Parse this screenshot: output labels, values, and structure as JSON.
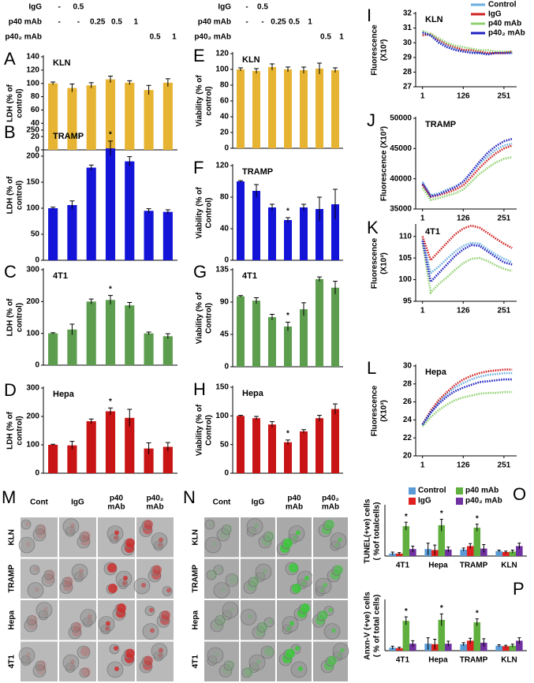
{
  "treatments": {
    "rows": [
      {
        "label": "IgG",
        "doses": [
          "-",
          "0.5",
          null,
          null,
          null,
          null,
          null
        ]
      },
      {
        "label": "p40 mAb",
        "doses": [
          "-",
          "-",
          "0.25",
          "0.5",
          "1",
          null,
          null
        ]
      },
      {
        "label": "p40₂ mAb",
        "doses": [
          null,
          null,
          null,
          null,
          null,
          "0.5",
          "1"
        ]
      }
    ]
  },
  "micrographs": [
    {
      "panel": "M",
      "columns": [
        [
          "Cont"
        ],
        [
          "IgG"
        ],
        [
          "p40",
          "mAb"
        ],
        [
          "p40₂",
          "mAb"
        ]
      ],
      "rows": [
        "KLN",
        "TRAMP",
        "Hepa",
        "4T1"
      ]
    },
    {
      "panel": "N",
      "columns": [
        [
          "Cont"
        ],
        [
          "IgG"
        ],
        [
          "p40",
          "mAb"
        ],
        [
          "p40₂",
          "mAb"
        ]
      ],
      "rows": [
        "KLN",
        "TRAMP",
        "Hepa",
        "4T1"
      ]
    }
  ],
  "chart_data": [
    {
      "type": "bar",
      "panel": "A",
      "title": "KLN",
      "y_label": [
        "LDH (% of",
        "control)"
      ],
      "color": "#e6b432",
      "values": [
        100,
        93,
        97,
        106,
        101,
        90,
        101
      ],
      "errors": [
        2,
        6,
        4,
        5,
        3,
        7,
        6
      ],
      "significance": [
        null,
        null,
        null,
        null,
        null,
        null,
        null
      ],
      "ylim": [
        0,
        140
      ],
      "yticks": [
        0,
        20,
        40,
        60,
        80,
        100,
        120,
        140
      ]
    },
    {
      "type": "bar",
      "panel": "B",
      "title": "TRAMP",
      "y_label": [
        "LDH (% of",
        "control)"
      ],
      "color": "#1414d8",
      "values": [
        100,
        106,
        178,
        215,
        190,
        95,
        93
      ],
      "errors": [
        2,
        8,
        5,
        14,
        9,
        4,
        4
      ],
      "significance": [
        null,
        null,
        null,
        "*",
        null,
        null,
        null
      ],
      "ylim": [
        0,
        250
      ],
      "yticks": [
        0,
        50,
        100,
        150,
        200,
        250
      ]
    },
    {
      "type": "bar",
      "panel": "C",
      "title": "4T1",
      "y_label": [
        "LDH (% of",
        "control)"
      ],
      "color": "#5c9e4e",
      "values": [
        100,
        112,
        200,
        205,
        188,
        100,
        91
      ],
      "errors": [
        2,
        17,
        8,
        14,
        9,
        4,
        8
      ],
      "significance": [
        null,
        null,
        null,
        "*",
        null,
        null,
        null
      ],
      "ylim": [
        0,
        300
      ],
      "yticks": [
        0,
        100,
        200,
        300
      ]
    },
    {
      "type": "bar",
      "panel": "D",
      "title": "Hepa",
      "y_label": [
        "LDH (% of",
        "control)"
      ],
      "color": "#c81414",
      "values": [
        100,
        98,
        183,
        218,
        195,
        87,
        93
      ],
      "errors": [
        2,
        14,
        8,
        12,
        30,
        20,
        15
      ],
      "significance": [
        null,
        null,
        null,
        "*",
        null,
        null,
        null
      ],
      "ylim": [
        0,
        300
      ],
      "yticks": [
        0,
        100,
        200,
        300
      ]
    },
    {
      "type": "bar",
      "panel": "E",
      "title": "KLN",
      "y_label": [
        "Viability (% of",
        "control)"
      ],
      "color": "#e6b432",
      "values": [
        100,
        98,
        103,
        100,
        99,
        101,
        99
      ],
      "errors": [
        2,
        3,
        4,
        3,
        4,
        7,
        3
      ],
      "significance": [
        null,
        null,
        null,
        null,
        null,
        null,
        null
      ],
      "ylim": [
        0,
        120
      ],
      "yticks": [
        0,
        20,
        40,
        60,
        80,
        100,
        120
      ]
    },
    {
      "type": "bar",
      "panel": "F",
      "title": "TRAMP",
      "y_label": [
        "Viability (% of",
        "Control)"
      ],
      "color": "#1414d8",
      "values": [
        100,
        88,
        67,
        51,
        67,
        65,
        71
      ],
      "errors": [
        1,
        8,
        4,
        3,
        4,
        15,
        19
      ],
      "significance": [
        null,
        null,
        null,
        "*",
        null,
        null,
        null
      ],
      "ylim": [
        0,
        120
      ],
      "yticks": [
        0,
        40,
        80,
        120
      ]
    },
    {
      "type": "bar",
      "panel": "G",
      "title": "4T1",
      "y_label": [
        "Viability (% of",
        "Control)"
      ],
      "color": "#5c9e4e",
      "values": [
        98,
        92,
        69,
        56,
        80,
        122,
        110
      ],
      "errors": [
        1,
        4,
        4,
        6,
        9,
        3,
        9
      ],
      "significance": [
        null,
        null,
        null,
        "*",
        null,
        null,
        null
      ],
      "ylim": [
        0,
        135
      ],
      "yticks": [
        0,
        45,
        90,
        135
      ]
    },
    {
      "type": "bar",
      "panel": "H",
      "title": "Hepa",
      "y_label": [
        "Viability (% of",
        "Control)"
      ],
      "color": "#c81414",
      "values": [
        100,
        96,
        85,
        54,
        73,
        96,
        112
      ],
      "errors": [
        1,
        3,
        5,
        4,
        3,
        5,
        9
      ],
      "significance": [
        null,
        null,
        null,
        "*",
        null,
        null,
        null
      ],
      "ylim": [
        0,
        150
      ],
      "yticks": [
        0,
        50,
        100,
        150
      ]
    },
    {
      "type": "line",
      "panel": "I",
      "title": "KLN",
      "y_label": [
        "Fluorescence",
        "(X10³)"
      ],
      "legend": "upper right",
      "x": [
        1,
        26,
        51,
        76,
        101,
        126,
        151,
        176,
        201,
        226,
        251,
        276
      ],
      "xlim": [
        -20,
        290
      ],
      "xticks": [
        1,
        126,
        251
      ],
      "ylim": [
        27,
        32
      ],
      "yticks": [
        27,
        28,
        29,
        30,
        31,
        32
      ],
      "series": [
        {
          "name": "Control",
          "color": "#6aaee0",
          "values": [
            30.6,
            30.5,
            30.1,
            29.8,
            29.6,
            29.5,
            29.4,
            29.3,
            29.3,
            29.3,
            29.3,
            29.3
          ]
        },
        {
          "name": "IgG",
          "color": "#d02020",
          "values": [
            30.5,
            30.6,
            30.2,
            29.9,
            29.7,
            29.5,
            29.5,
            29.4,
            29.3,
            29.3,
            29.3,
            29.4
          ]
        },
        {
          "name": "p40 mAb",
          "color": "#90d070",
          "values": [
            30.8,
            30.6,
            30.3,
            30.0,
            29.8,
            29.7,
            29.6,
            29.5,
            29.5,
            29.4,
            29.4,
            29.4
          ]
        },
        {
          "name": "p40₂ mAb",
          "color": "#2020c0",
          "values": [
            30.7,
            30.5,
            30.0,
            29.7,
            29.5,
            29.4,
            29.3,
            29.3,
            29.2,
            29.3,
            29.3,
            29.3
          ]
        }
      ]
    },
    {
      "type": "line",
      "panel": "J",
      "title": "TRAMP",
      "y_label": [
        "Fluorescence (X10³)"
      ],
      "x": [
        1,
        26,
        51,
        76,
        101,
        126,
        151,
        176,
        201,
        226,
        251,
        276
      ],
      "xlim": [
        -20,
        290
      ],
      "xticks": [
        1,
        126,
        251
      ],
      "ylim": [
        35000,
        50000
      ],
      "yticks": [
        35000,
        40000,
        45000,
        50000
      ],
      "series": [
        {
          "color": "#6aaee0",
          "values": [
            39500,
            37300,
            37600,
            38200,
            38700,
            39500,
            41000,
            42500,
            43700,
            44800,
            45500,
            45800
          ]
        },
        {
          "color": "#d02020",
          "values": [
            39000,
            37000,
            37300,
            37700,
            38200,
            38900,
            40300,
            41800,
            43100,
            44200,
            45000,
            45500
          ]
        },
        {
          "color": "#90d070",
          "values": [
            38500,
            36500,
            36800,
            37200,
            37600,
            38200,
            39500,
            40800,
            41800,
            42700,
            43300,
            43600
          ]
        },
        {
          "color": "#2020c0",
          "values": [
            39200,
            37100,
            37400,
            38000,
            38600,
            39500,
            41100,
            42800,
            44300,
            45400,
            46200,
            46600
          ]
        }
      ]
    },
    {
      "type": "line",
      "panel": "K",
      "title": "4T1",
      "y_label": [
        "Fluorescence",
        "(X10³)"
      ],
      "x": [
        1,
        26,
        51,
        76,
        101,
        126,
        151,
        176,
        201,
        226,
        251,
        276
      ],
      "xlim": [
        -20,
        290
      ],
      "xticks": [
        1,
        126,
        251
      ],
      "ylim": [
        95,
        112.5
      ],
      "yticks": [
        95,
        100,
        105,
        110
      ],
      "series": [
        {
          "color": "#6aaee0",
          "values": [
            109.5,
            101.5,
            103,
            104.8,
            106.5,
            107.8,
            108.5,
            108.3,
            107,
            105.8,
            104.8,
            104
          ]
        },
        {
          "color": "#d02020",
          "values": [
            110,
            104.5,
            106.5,
            108.5,
            110.5,
            111.8,
            112.5,
            112,
            110.8,
            109.5,
            108.3,
            107.3
          ]
        },
        {
          "color": "#90d070",
          "values": [
            108.5,
            97,
            99,
            100.5,
            102.3,
            103.8,
            104.8,
            105,
            104.3,
            103.3,
            102.5,
            102
          ]
        },
        {
          "color": "#2020c0",
          "values": [
            109,
            99.5,
            101.5,
            103.5,
            105.5,
            107,
            108,
            107.8,
            106.5,
            105.2,
            104,
            103.5
          ]
        }
      ]
    },
    {
      "type": "line",
      "panel": "L",
      "title": "Hepa",
      "y_label": [
        "Fluorescence",
        "(X10³)"
      ],
      "x": [
        1,
        26,
        51,
        76,
        101,
        126,
        151,
        176,
        201,
        226,
        251,
        276
      ],
      "xlim": [
        -20,
        290
      ],
      "xticks": [
        1,
        126,
        251
      ],
      "ylim": [
        20,
        30
      ],
      "yticks": [
        20,
        22,
        24,
        26,
        28,
        30
      ],
      "series": [
        {
          "color": "#6aaee0",
          "values": [
            23.4,
            24.8,
            26,
            26.9,
            27.6,
            28.1,
            28.5,
            28.8,
            29,
            29.1,
            29.2,
            29.2
          ]
        },
        {
          "color": "#d02020",
          "values": [
            23.5,
            25,
            26.2,
            27.1,
            27.9,
            28.5,
            28.9,
            29.2,
            29.4,
            29.5,
            29.6,
            29.6
          ]
        },
        {
          "color": "#90d070",
          "values": [
            23.3,
            24.3,
            25.1,
            25.7,
            26.2,
            26.5,
            26.7,
            26.9,
            27,
            27,
            27.1,
            27.1
          ]
        },
        {
          "color": "#2020c0",
          "values": [
            23.5,
            24.8,
            25.8,
            26.6,
            27.2,
            27.6,
            27.9,
            28.2,
            28.3,
            28.4,
            28.5,
            28.5
          ]
        }
      ]
    },
    {
      "type": "bar",
      "panel": "O",
      "y_label": [
        "TUNEL(+ve) cells",
        "( %of totalcells)"
      ],
      "legend": "top",
      "categories": [
        "4T1",
        "Hepa",
        "TRAMP",
        "KLN"
      ],
      "ylim": [
        0,
        100
      ],
      "series": [
        {
          "name": "Control",
          "color": "#5b9bd5",
          "values": [
            5,
            14,
            13,
            10
          ],
          "errors": [
            3,
            12,
            3,
            2
          ],
          "significance": [
            null,
            null,
            null,
            null
          ]
        },
        {
          "name": "IgG",
          "color": "#e02020",
          "values": [
            5,
            12,
            20,
            8
          ],
          "errors": [
            2,
            10,
            5,
            2
          ],
          "significance": [
            null,
            null,
            null,
            null
          ]
        },
        {
          "name": "p40 mAb",
          "color": "#60b040",
          "values": [
            60,
            62,
            57,
            9
          ],
          "errors": [
            8,
            12,
            7,
            3
          ],
          "significance": [
            "*",
            "*",
            "*",
            null
          ]
        },
        {
          "name": "p40₂ mAb",
          "color": "#7030a0",
          "values": [
            14,
            13,
            15,
            20
          ],
          "errors": [
            6,
            5,
            8,
            6
          ],
          "significance": [
            null,
            null,
            null,
            null
          ]
        }
      ]
    },
    {
      "type": "bar",
      "panel": "P",
      "y_label": [
        "Anxn-V (+ve) cells",
        "( % of total cells)"
      ],
      "categories": [
        "4T1",
        "Hepa",
        "TRAMP",
        "KLN"
      ],
      "ylim": [
        0,
        100
      ],
      "series": [
        {
          "color": "#5b9bd5",
          "values": [
            6,
            14,
            13,
            10
          ],
          "errors": [
            3,
            12,
            3,
            2
          ],
          "significance": [
            null,
            null,
            null,
            null
          ]
        },
        {
          "color": "#e02020",
          "values": [
            5,
            13,
            20,
            9
          ],
          "errors": [
            2,
            10,
            5,
            2
          ],
          "significance": [
            null,
            null,
            null,
            null
          ]
        },
        {
          "color": "#60b040",
          "values": [
            60,
            62,
            57,
            10
          ],
          "errors": [
            8,
            12,
            7,
            3
          ],
          "significance": [
            "*",
            "*",
            "*",
            null
          ]
        },
        {
          "color": "#7030a0",
          "values": [
            14,
            14,
            16,
            20
          ],
          "errors": [
            6,
            5,
            8,
            6
          ],
          "significance": [
            null,
            null,
            null,
            null
          ]
        }
      ]
    }
  ]
}
